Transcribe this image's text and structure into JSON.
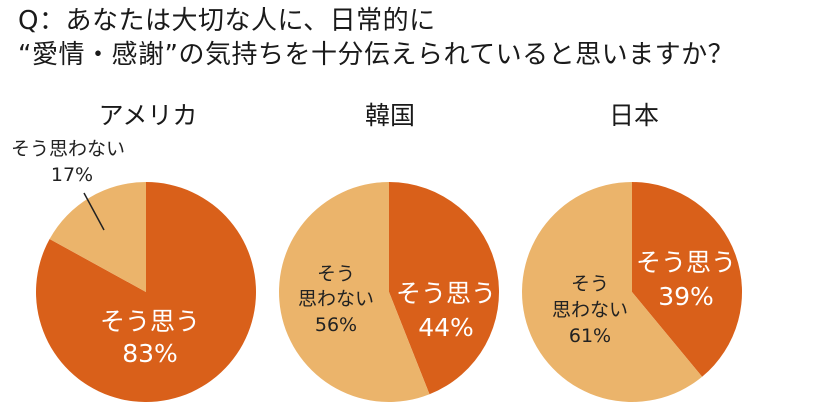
{
  "question": {
    "line1": "Q：あなたは大切な人に、日常的に",
    "line2": "“愛情・感謝”の気持ちを十分伝えられていると思いますか？"
  },
  "colors": {
    "yes": "#d9601a",
    "no": "#ebb46b",
    "text_light": "#ffffff",
    "text_dark": "#222222"
  },
  "chart_data": [
    {
      "type": "pie",
      "title": "アメリカ",
      "categories": [
        "そう思う",
        "そう思わない"
      ],
      "values": [
        83,
        17
      ],
      "labels": {
        "yes_name": "そう思う",
        "yes_value": "83%",
        "no_name": "そう思わない",
        "no_value": "17%"
      }
    },
    {
      "type": "pie",
      "title": "韓国",
      "categories": [
        "そう思う",
        "そう思わない"
      ],
      "values": [
        44,
        56
      ],
      "labels": {
        "yes_name": "そう思う",
        "yes_value": "44%",
        "no_name_1": "そう",
        "no_name_2": "思わない",
        "no_value": "56%"
      }
    },
    {
      "type": "pie",
      "title": "日本",
      "categories": [
        "そう思う",
        "そう思わない"
      ],
      "values": [
        39,
        61
      ],
      "labels": {
        "yes_name": "そう思う",
        "yes_value": "39%",
        "no_name_1": "そう",
        "no_name_2": "思わない",
        "no_value": "61%"
      }
    }
  ]
}
